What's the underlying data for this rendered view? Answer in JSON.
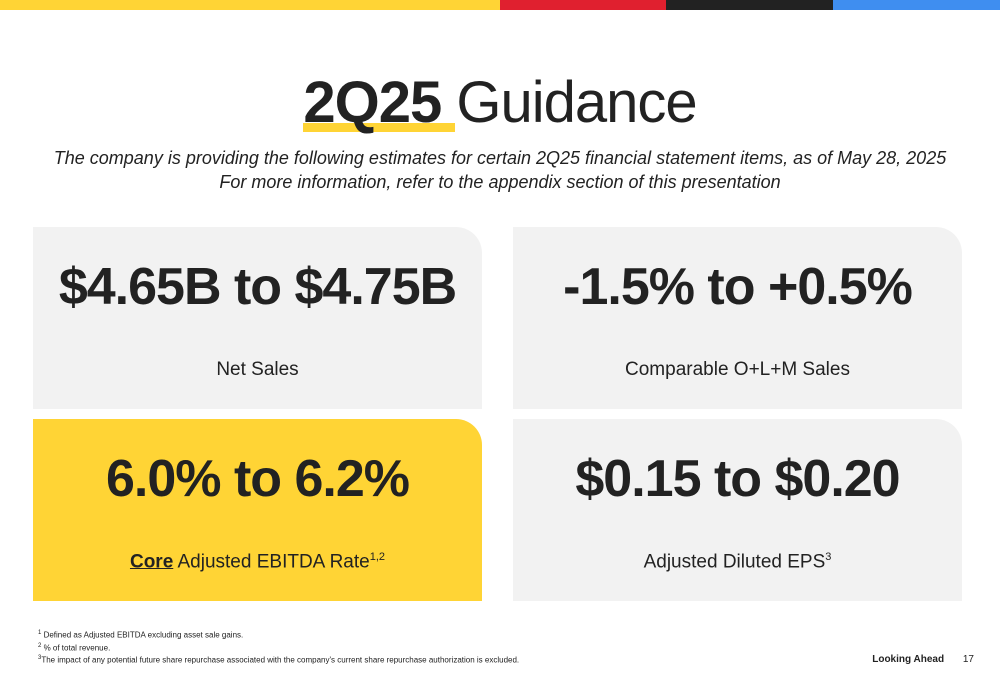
{
  "colors": {
    "accent_yellow": "#FFD435",
    "accent_red": "#E0202F",
    "accent_black": "#222222",
    "accent_blue": "#3F8EF0",
    "card_gray": "#F2F2F2"
  },
  "title": {
    "bold": "2Q25",
    "light": "Guidance"
  },
  "subtitle": {
    "line1": "The company is providing the following estimates for certain 2Q25 financial statement items, as of May 28, 2025",
    "line2": "For more information, refer to the appendix section of this presentation"
  },
  "cards": [
    {
      "value": "$4.65B to $4.75B",
      "label": "Net Sales"
    },
    {
      "value": "-1.5% to +0.5%",
      "label": "Comparable O+L+M Sales"
    },
    {
      "value": "6.0% to 6.2%",
      "label_bold": "Core",
      "label": "Adjusted EBITDA Rate",
      "sup": "1,2"
    },
    {
      "value": "$0.15 to $0.20",
      "label": "Adjusted Diluted EPS",
      "sup": "3"
    }
  ],
  "footnotes": [
    {
      "mark": "1",
      "text": "Defined as Adjusted EBITDA excluding asset sale gains."
    },
    {
      "mark": "2",
      "text": "% of total revenue."
    },
    {
      "mark": "3",
      "text": "The impact of any potential future share repurchase associated with the company's current share repurchase authorization is excluded."
    }
  ],
  "footer": {
    "section": "Looking Ahead",
    "page_number": "17"
  }
}
